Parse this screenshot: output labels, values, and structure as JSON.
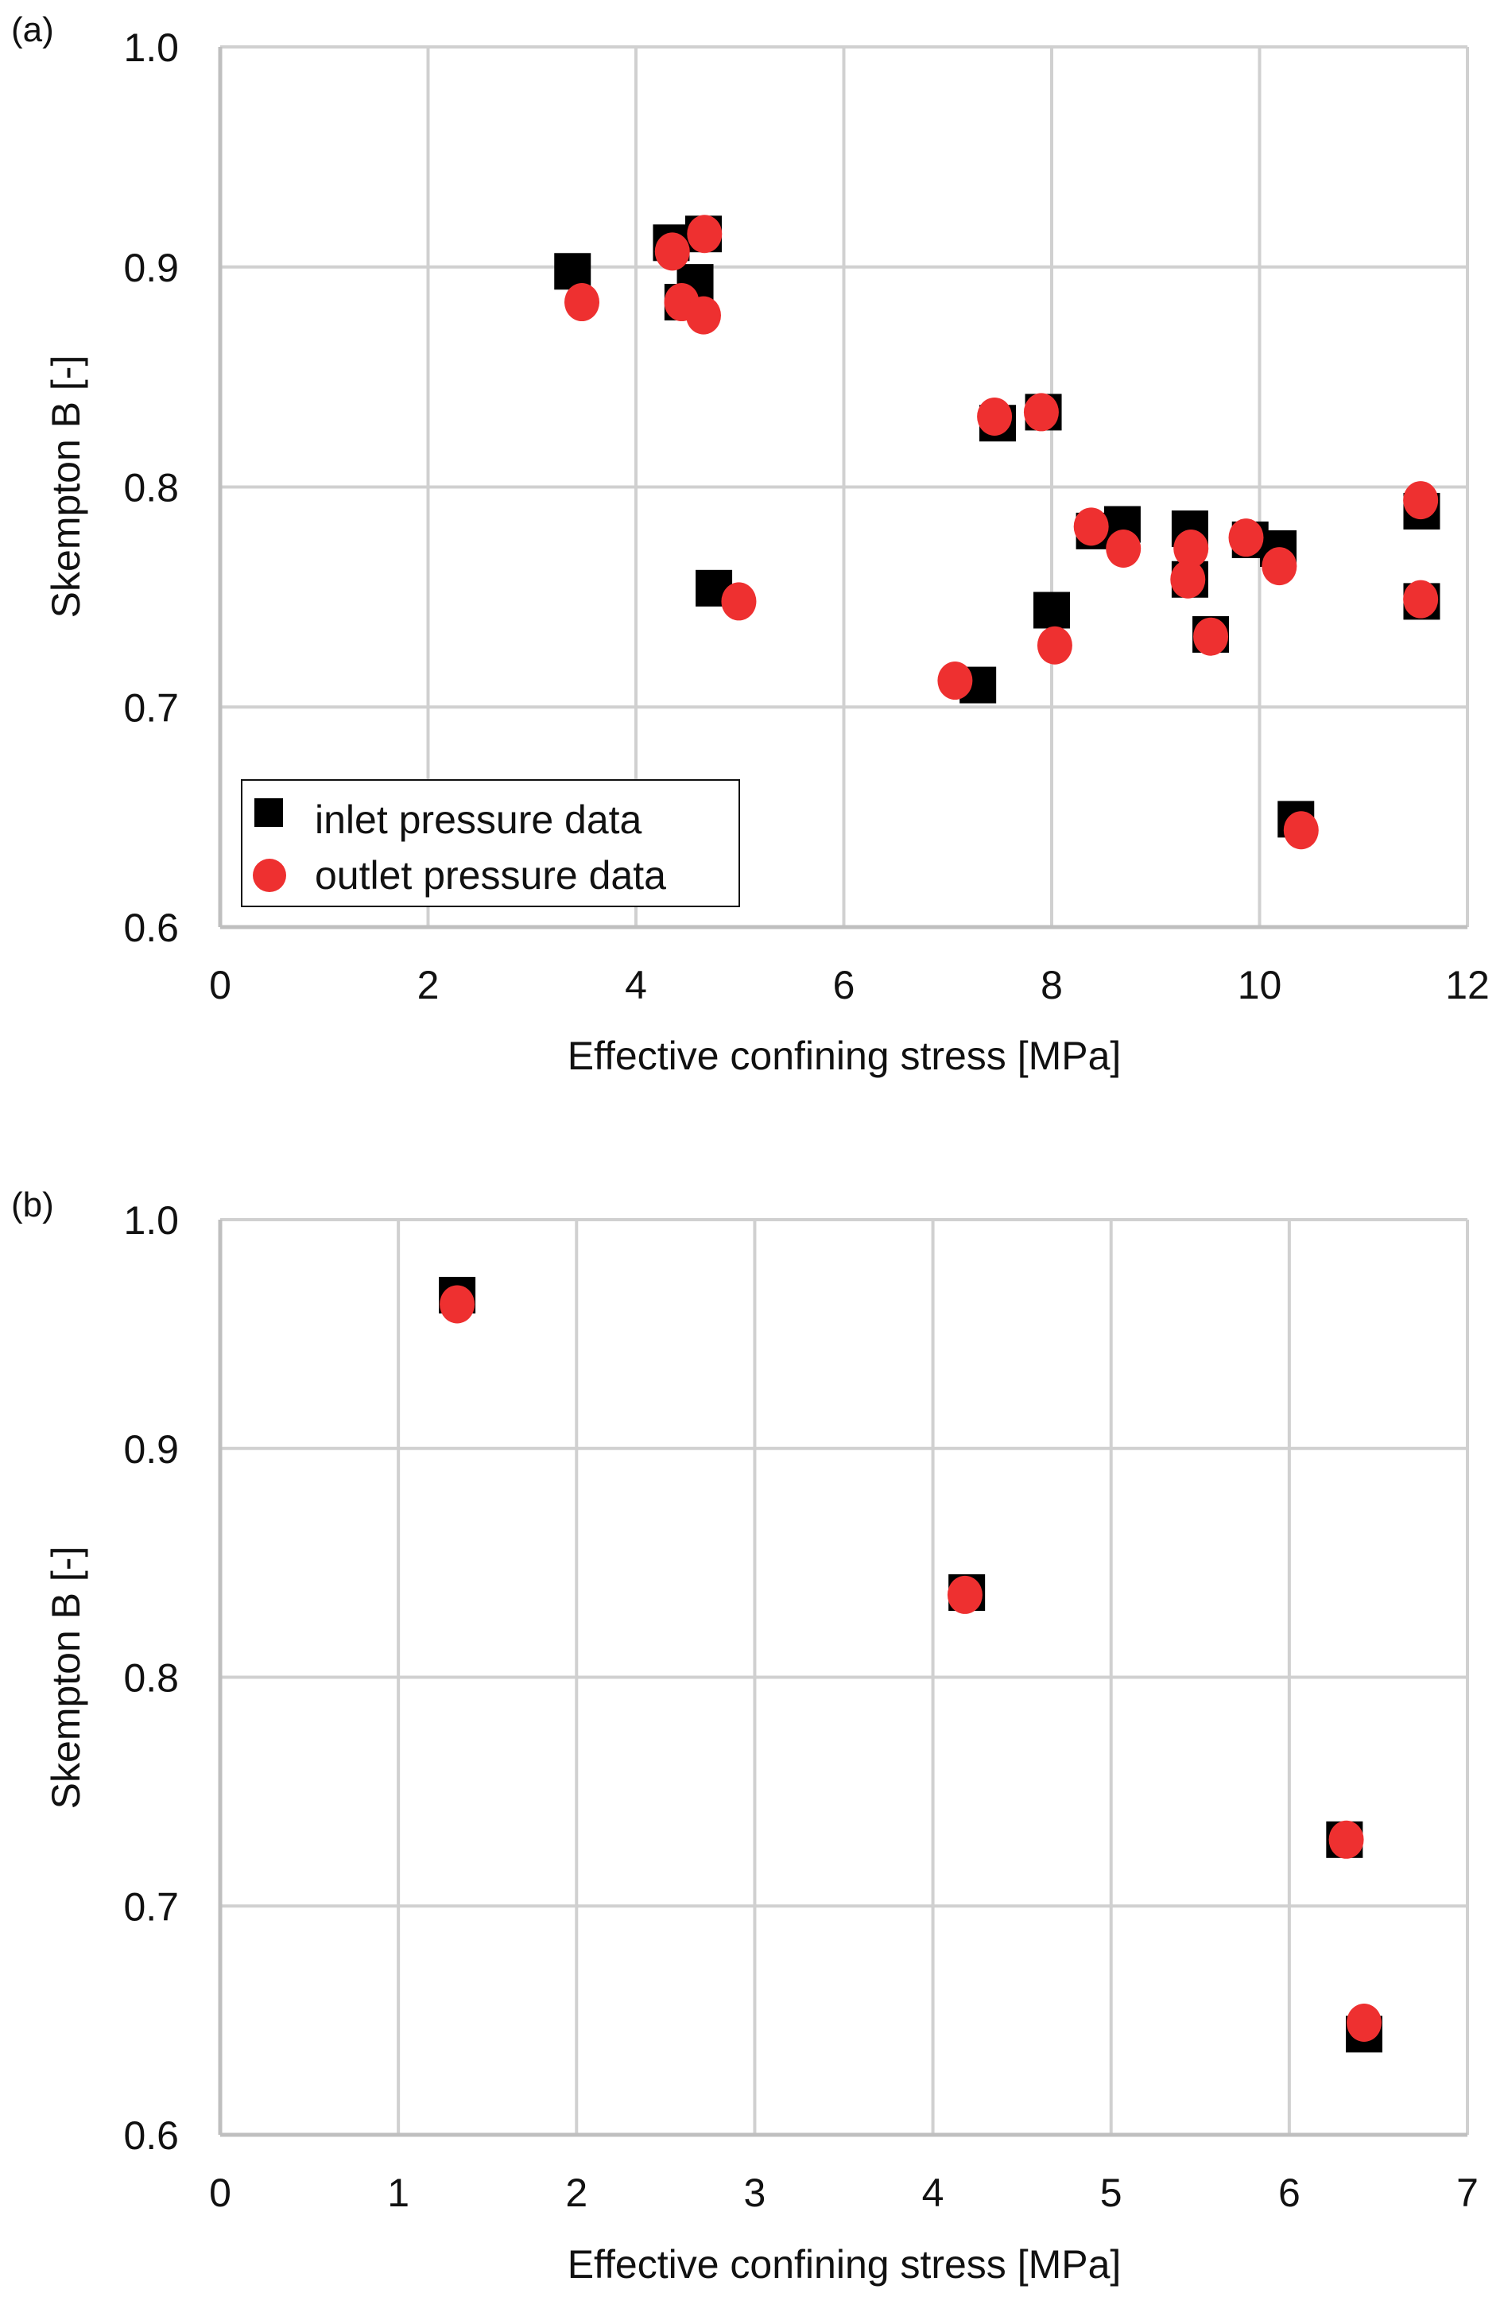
{
  "colors": {
    "inlet": "#000000",
    "outlet": "#EE3030",
    "grid": "#D0D0D0",
    "axis": "#BFBFBF"
  },
  "chart_data": [
    {
      "panel": "(a)",
      "type": "scatter",
      "title": "",
      "xlabel": "Effective confining stress [MPa]",
      "ylabel": "Skempton B [-]",
      "xlim": [
        0,
        12
      ],
      "ylim": [
        0.6,
        1.0
      ],
      "xticks": [
        0,
        2,
        4,
        6,
        8,
        10,
        12
      ],
      "yticks": [
        0.6,
        0.7,
        0.8,
        0.9,
        1.0
      ],
      "xtick_labels": [
        "0",
        "2",
        "4",
        "6",
        "8",
        "10",
        "12"
      ],
      "ytick_labels": [
        "0.6",
        "0.7",
        "0.8",
        "0.9",
        "1.0"
      ],
      "grid": true,
      "legend": {
        "placement": "bottom-left",
        "entries": [
          "inlet pressure data",
          "outlet pressure data"
        ]
      },
      "series": [
        {
          "name": "inlet pressure data",
          "marker": "square",
          "x": [
            3.39,
            4.34,
            4.65,
            4.57,
            4.45,
            4.75,
            7.29,
            7.48,
            7.92,
            8.0,
            8.41,
            8.68,
            9.33,
            9.33,
            9.53,
            9.91,
            10.18,
            10.35,
            11.56,
            11.56
          ],
          "y": [
            0.898,
            0.911,
            0.915,
            0.893,
            0.884,
            0.754,
            0.71,
            0.829,
            0.834,
            0.744,
            0.78,
            0.783,
            0.781,
            0.758,
            0.733,
            0.776,
            0.772,
            0.649,
            0.789,
            0.748
          ]
        },
        {
          "name": "outlet pressure data",
          "marker": "circle",
          "x": [
            3.48,
            4.35,
            4.66,
            4.44,
            4.65,
            4.99,
            7.07,
            7.45,
            7.9,
            8.03,
            8.38,
            8.69,
            9.34,
            9.31,
            9.53,
            9.87,
            10.19,
            10.4,
            11.55,
            11.55
          ],
          "y": [
            0.884,
            0.907,
            0.915,
            0.884,
            0.878,
            0.748,
            0.712,
            0.832,
            0.834,
            0.728,
            0.782,
            0.772,
            0.772,
            0.758,
            0.732,
            0.777,
            0.764,
            0.644,
            0.794,
            0.749
          ]
        }
      ]
    },
    {
      "panel": "(b)",
      "type": "scatter",
      "title": "",
      "xlabel": "Effective confining stress [MPa]",
      "ylabel": "Skempton B [-]",
      "xlim": [
        0,
        7
      ],
      "ylim": [
        0.6,
        1.0
      ],
      "xticks": [
        0,
        1,
        2,
        3,
        4,
        5,
        6,
        7
      ],
      "yticks": [
        0.6,
        0.7,
        0.8,
        0.9,
        1.0
      ],
      "xtick_labels": [
        "0",
        "1",
        "2",
        "3",
        "4",
        "5",
        "6",
        "7"
      ],
      "ytick_labels": [
        "0.6",
        "0.7",
        "0.8",
        "0.9",
        "1.0"
      ],
      "grid": true,
      "legend": null,
      "series": [
        {
          "name": "inlet pressure data",
          "marker": "square",
          "x": [
            1.33,
            4.19,
            6.31,
            6.42
          ],
          "y": [
            0.967,
            0.837,
            0.729,
            0.644
          ]
        },
        {
          "name": "outlet pressure data",
          "marker": "circle",
          "x": [
            1.33,
            4.18,
            6.32,
            6.42
          ],
          "y": [
            0.963,
            0.836,
            0.729,
            0.649
          ]
        }
      ]
    }
  ]
}
